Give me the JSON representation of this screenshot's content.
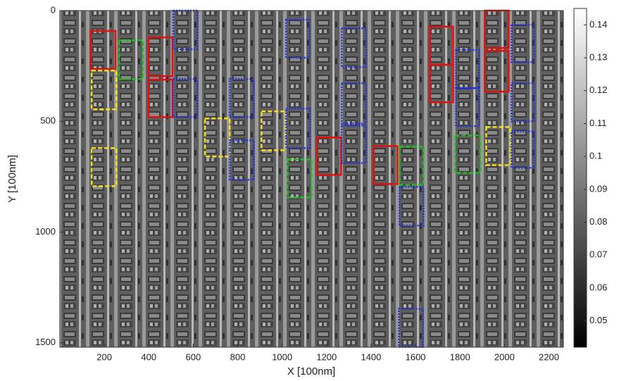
{
  "chart_data": {
    "type": "image",
    "xlabel": "X [100nm]",
    "ylabel": "Y [100nm]",
    "xlim": [
      0,
      2265
    ],
    "ylim": [
      0,
      1520
    ],
    "y_reversed": true,
    "xticks": [
      200,
      400,
      600,
      800,
      1000,
      1200,
      1400,
      1600,
      1800,
      2000,
      2200
    ],
    "yticks": [
      0,
      500,
      1000,
      1500
    ],
    "colorbar": {
      "lim": [
        0.042,
        0.145
      ],
      "ticks": [
        0.05,
        0.06,
        0.07,
        0.08,
        0.09,
        0.1,
        0.11,
        0.12,
        0.13,
        0.14
      ]
    },
    "boxes": [
      {
        "color": "#e01010",
        "style": "solid",
        "rects": [
          [
            139,
            92,
            250,
            264
          ],
          [
            399,
            121,
            507,
            296
          ],
          [
            399,
            312,
            507,
            481
          ],
          [
            1157,
            573,
            1265,
            742
          ],
          [
            1411,
            612,
            1518,
            783
          ],
          [
            1664,
            73,
            1769,
            245
          ],
          [
            1664,
            245,
            1769,
            414
          ],
          [
            1912,
            0,
            2019,
            169
          ],
          [
            1912,
            182,
            2019,
            366
          ]
        ]
      },
      {
        "color": "#f0e020",
        "style": "dashed",
        "rects": [
          [
            143,
            271,
            254,
            446
          ],
          [
            143,
            621,
            254,
            793
          ],
          [
            653,
            487,
            764,
            659
          ],
          [
            907,
            455,
            1014,
            631
          ],
          [
            1918,
            526,
            2026,
            698
          ]
        ]
      },
      {
        "color": "#20c020",
        "style": "dashed",
        "rects": [
          [
            266,
            134,
            374,
            309
          ],
          [
            1024,
            672,
            1132,
            844
          ],
          [
            1528,
            615,
            1636,
            787
          ],
          [
            1778,
            564,
            1892,
            733
          ]
        ]
      },
      {
        "color": "#2030e0",
        "style": "dotted",
        "rects": [
          [
            510,
            0,
            618,
            175
          ],
          [
            510,
            309,
            618,
            481
          ],
          [
            764,
            309,
            872,
            481
          ],
          [
            764,
            586,
            872,
            764
          ],
          [
            1018,
            41,
            1122,
            213
          ],
          [
            1018,
            443,
            1125,
            621
          ],
          [
            1268,
            80,
            1376,
            255
          ],
          [
            1268,
            328,
            1376,
            510
          ],
          [
            1268,
            519,
            1376,
            688
          ],
          [
            1528,
            796,
            1636,
            971
          ],
          [
            1525,
            1347,
            1633,
            1519
          ],
          [
            1782,
            178,
            1886,
            350
          ],
          [
            1782,
            350,
            1886,
            522
          ],
          [
            2032,
            64,
            2133,
            233
          ],
          [
            2032,
            328,
            2133,
            500
          ],
          [
            2032,
            545,
            2133,
            710
          ]
        ]
      }
    ]
  }
}
